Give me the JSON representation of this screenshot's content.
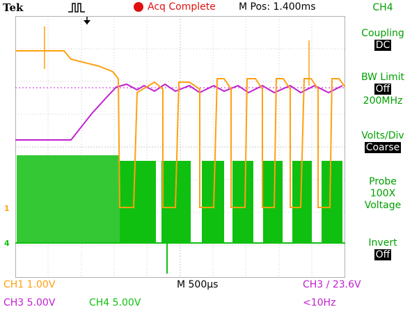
{
  "header": {
    "brand": "Tek",
    "acq_status": "Acq Complete",
    "m_pos": "M Pos: 1.400ms"
  },
  "sidebar": {
    "channel": "CH4",
    "coupling_label": "Coupling",
    "coupling_value": "DC",
    "bw_label": "BW Limit",
    "bw_value": "Off",
    "bw_freq": "200MHz",
    "volts_label": "Volts/Div",
    "volts_value": "Coarse",
    "probe_label": "Probe",
    "probe_value": "100X",
    "probe_type": "Voltage",
    "invert_label": "Invert",
    "invert_value": "Off"
  },
  "footer": {
    "ch1_scale": "CH1  1.00V",
    "timebase": "M 500µs",
    "trigger": "CH3 ∕ 23.6V",
    "ch3_scale": "CH3  5.00V",
    "ch4_scale": "CH4  5.00V",
    "freq": "<10Hz"
  },
  "markers": {
    "ch1": "1",
    "ch4": "4"
  },
  "colors": {
    "ch1": "#ffa010",
    "ch3": "#c020d0",
    "ch4": "#10c010",
    "grid": "#c8c8c8",
    "accent": "#00a000"
  }
}
